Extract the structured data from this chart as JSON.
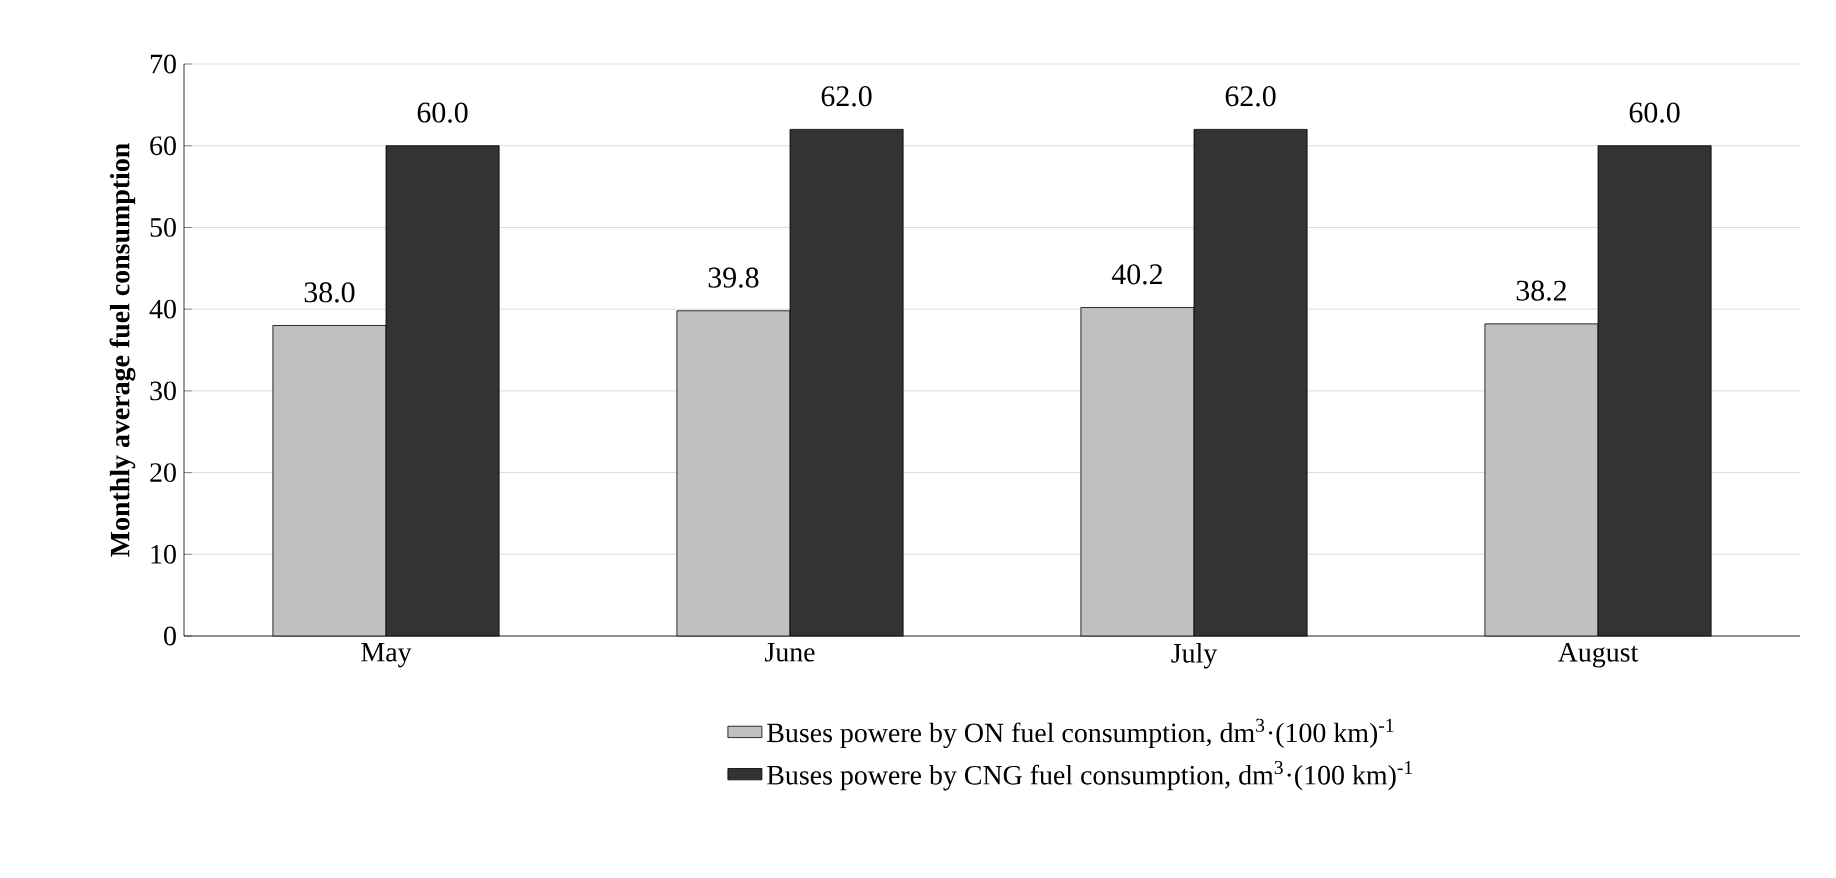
{
  "chart_data": {
    "type": "bar",
    "ylabel": "Monthly average fuel consumption",
    "categories": [
      "May",
      "June",
      "July",
      "August"
    ],
    "series": [
      {
        "name": "Buses powere by ON fuel consumption,   dm$^{3}$·(100 km)$^{-1}$",
        "color": "#c0c0c0",
        "values": [
          38.0,
          39.8,
          40.2,
          38.2
        ],
        "value_labels": [
          "38.0",
          "39.8",
          "40.2",
          "38.2"
        ]
      },
      {
        "name": "Buses powere by CNG fuel consumption,   dm$^{3}$·(100 km)$^{-1}$",
        "color": "#333333",
        "values": [
          60.0,
          62.0,
          62.0,
          60.0
        ],
        "value_labels": [
          "60.0",
          "62.0",
          "62.0",
          "60.0"
        ]
      }
    ],
    "ylim": [
      0,
      70
    ],
    "yticks": [
      0,
      10,
      20,
      30,
      40,
      50,
      60,
      70
    ],
    "grid": "y",
    "legend": "bottom"
  }
}
